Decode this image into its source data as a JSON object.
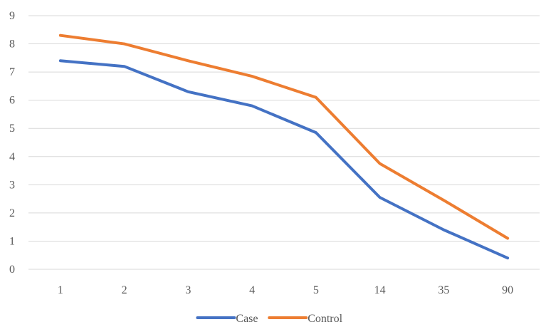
{
  "chart_data": {
    "type": "line",
    "title": "",
    "xlabel": "",
    "ylabel": "",
    "categories": [
      "1",
      "2",
      "3",
      "4",
      "5",
      "14",
      "35",
      "90"
    ],
    "ylim": [
      0,
      9
    ],
    "yticks": [
      0,
      1,
      2,
      3,
      4,
      5,
      6,
      7,
      8,
      9
    ],
    "grid": true,
    "legend_position": "bottom",
    "series": [
      {
        "name": "Case",
        "color": "#4472C4",
        "values": [
          7.4,
          7.2,
          6.3,
          5.8,
          4.85,
          2.55,
          1.4,
          0.4
        ]
      },
      {
        "name": "Control",
        "color": "#ED7D31",
        "values": [
          8.3,
          8.0,
          7.4,
          6.85,
          6.1,
          3.75,
          2.45,
          1.1
        ]
      }
    ]
  }
}
